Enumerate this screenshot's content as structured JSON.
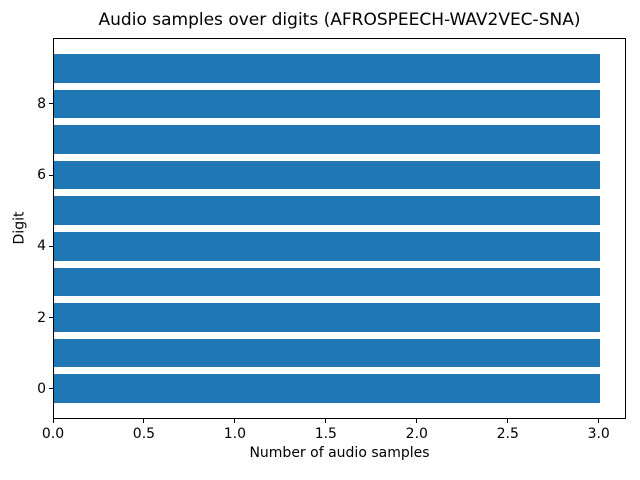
{
  "figure": {
    "background": "#ffffff"
  },
  "chart_data": {
    "type": "bar",
    "orientation": "horizontal",
    "title": "Audio samples over digits (AFROSPEECH-WAV2VEC-SNA)",
    "xlabel": "Number of audio samples",
    "ylabel": "Digit",
    "categories": [
      0,
      1,
      2,
      3,
      4,
      5,
      6,
      7,
      8,
      9
    ],
    "values": [
      3,
      3,
      3,
      3,
      3,
      3,
      3,
      3,
      3,
      3
    ],
    "bar_color": "#1f77b4",
    "bar_height_units": 0.8,
    "xlim": [
      0,
      3.15
    ],
    "ylim": [
      -0.85,
      9.85
    ],
    "xticks": {
      "values": [
        0,
        0.5,
        1.0,
        1.5,
        2.0,
        2.5,
        3.0
      ],
      "labels": [
        "0.0",
        "0.5",
        "1.0",
        "1.5",
        "2.0",
        "2.5",
        "3.0"
      ]
    },
    "yticks": {
      "values": [
        0,
        2,
        4,
        6,
        8
      ],
      "labels": [
        "0",
        "2",
        "4",
        "6",
        "8"
      ]
    },
    "grid": false,
    "legend": "none",
    "text_color": "#000000",
    "spine_color": "#000000"
  }
}
